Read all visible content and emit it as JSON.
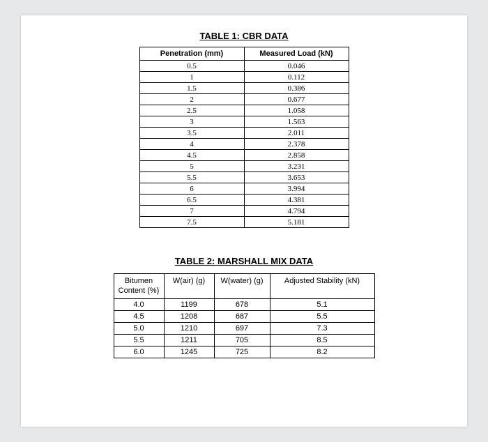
{
  "table1": {
    "title": "TABLE 1: CBR DATA",
    "headers": [
      "Penetration (mm)",
      "Measured Load (kN)"
    ],
    "rows": [
      [
        "0.5",
        "0.046"
      ],
      [
        "1",
        "0.112"
      ],
      [
        "1.5",
        "0.386"
      ],
      [
        "2",
        "0.677"
      ],
      [
        "2.5",
        "1.058"
      ],
      [
        "3",
        "1.563"
      ],
      [
        "3.5",
        "2.011"
      ],
      [
        "4",
        "2.378"
      ],
      [
        "4.5",
        "2.858"
      ],
      [
        "5",
        "3.231"
      ],
      [
        "5.5",
        "3.653"
      ],
      [
        "6",
        "3.994"
      ],
      [
        "6.5",
        "4.381"
      ],
      [
        "7",
        "4.794"
      ],
      [
        "7.5",
        "5.181"
      ]
    ]
  },
  "table2": {
    "title": "TABLE 2: MARSHALL MIX DATA",
    "headers": [
      "Bitumen Content (%)",
      "W(air) (g)",
      "W(water) (g)",
      "Adjusted Stability (kN)"
    ],
    "rows": [
      [
        "4.0",
        "1199",
        "678",
        "5.1"
      ],
      [
        "4.5",
        "1208",
        "687",
        "5.5"
      ],
      [
        "5.0",
        "1210",
        "697",
        "7.3"
      ],
      [
        "5.5",
        "1211",
        "705",
        "8.5"
      ],
      [
        "6.0",
        "1245",
        "725",
        "8.2"
      ]
    ]
  },
  "style": {
    "page_bg": "#ffffff",
    "outer_bg": "#e7e8ea",
    "border_color": "#000000",
    "text_color": "#000000",
    "title_fontsize": 13,
    "body_fontsize": 11
  }
}
